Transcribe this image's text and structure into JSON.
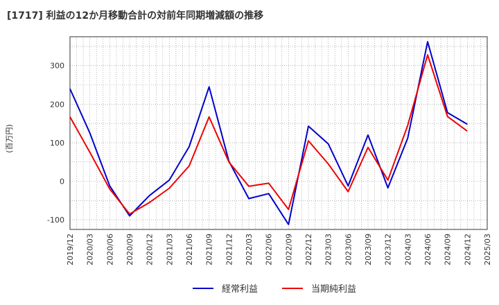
{
  "chart_data": {
    "type": "line",
    "title": "[1717]  利益の12か月移動合計の対前年同期増減額の推移",
    "ylabel": "(百万円)",
    "xlabel": "",
    "ylim": [
      -125,
      375
    ],
    "yticks": [
      -100,
      0,
      100,
      200,
      300
    ],
    "grid": true,
    "legend_position": "bottom",
    "x": [
      "2019/12",
      "2020/03",
      "2020/06",
      "2020/09",
      "2020/12",
      "2021/03",
      "2021/06",
      "2021/09",
      "2021/12",
      "2022/03",
      "2022/06",
      "2022/09",
      "2022/12",
      "2023/03",
      "2023/06",
      "2023/09",
      "2023/12",
      "2024/03",
      "2024/06",
      "2024/09",
      "2024/12",
      "2025/03"
    ],
    "series": [
      {
        "name": "経常利益",
        "color": "#0000cc",
        "values": [
          240,
          125,
          -12,
          -90,
          -37,
          3,
          90,
          245,
          52,
          -45,
          -32,
          -112,
          143,
          97,
          -12,
          120,
          -17,
          112,
          362,
          178,
          148,
          null
        ]
      },
      {
        "name": "当期純利益",
        "color": "#ee0000",
        "values": [
          167,
          75,
          -20,
          -85,
          -55,
          -18,
          40,
          167,
          50,
          -13,
          -5,
          -73,
          105,
          45,
          -27,
          88,
          3,
          145,
          328,
          168,
          130,
          null
        ]
      }
    ]
  }
}
